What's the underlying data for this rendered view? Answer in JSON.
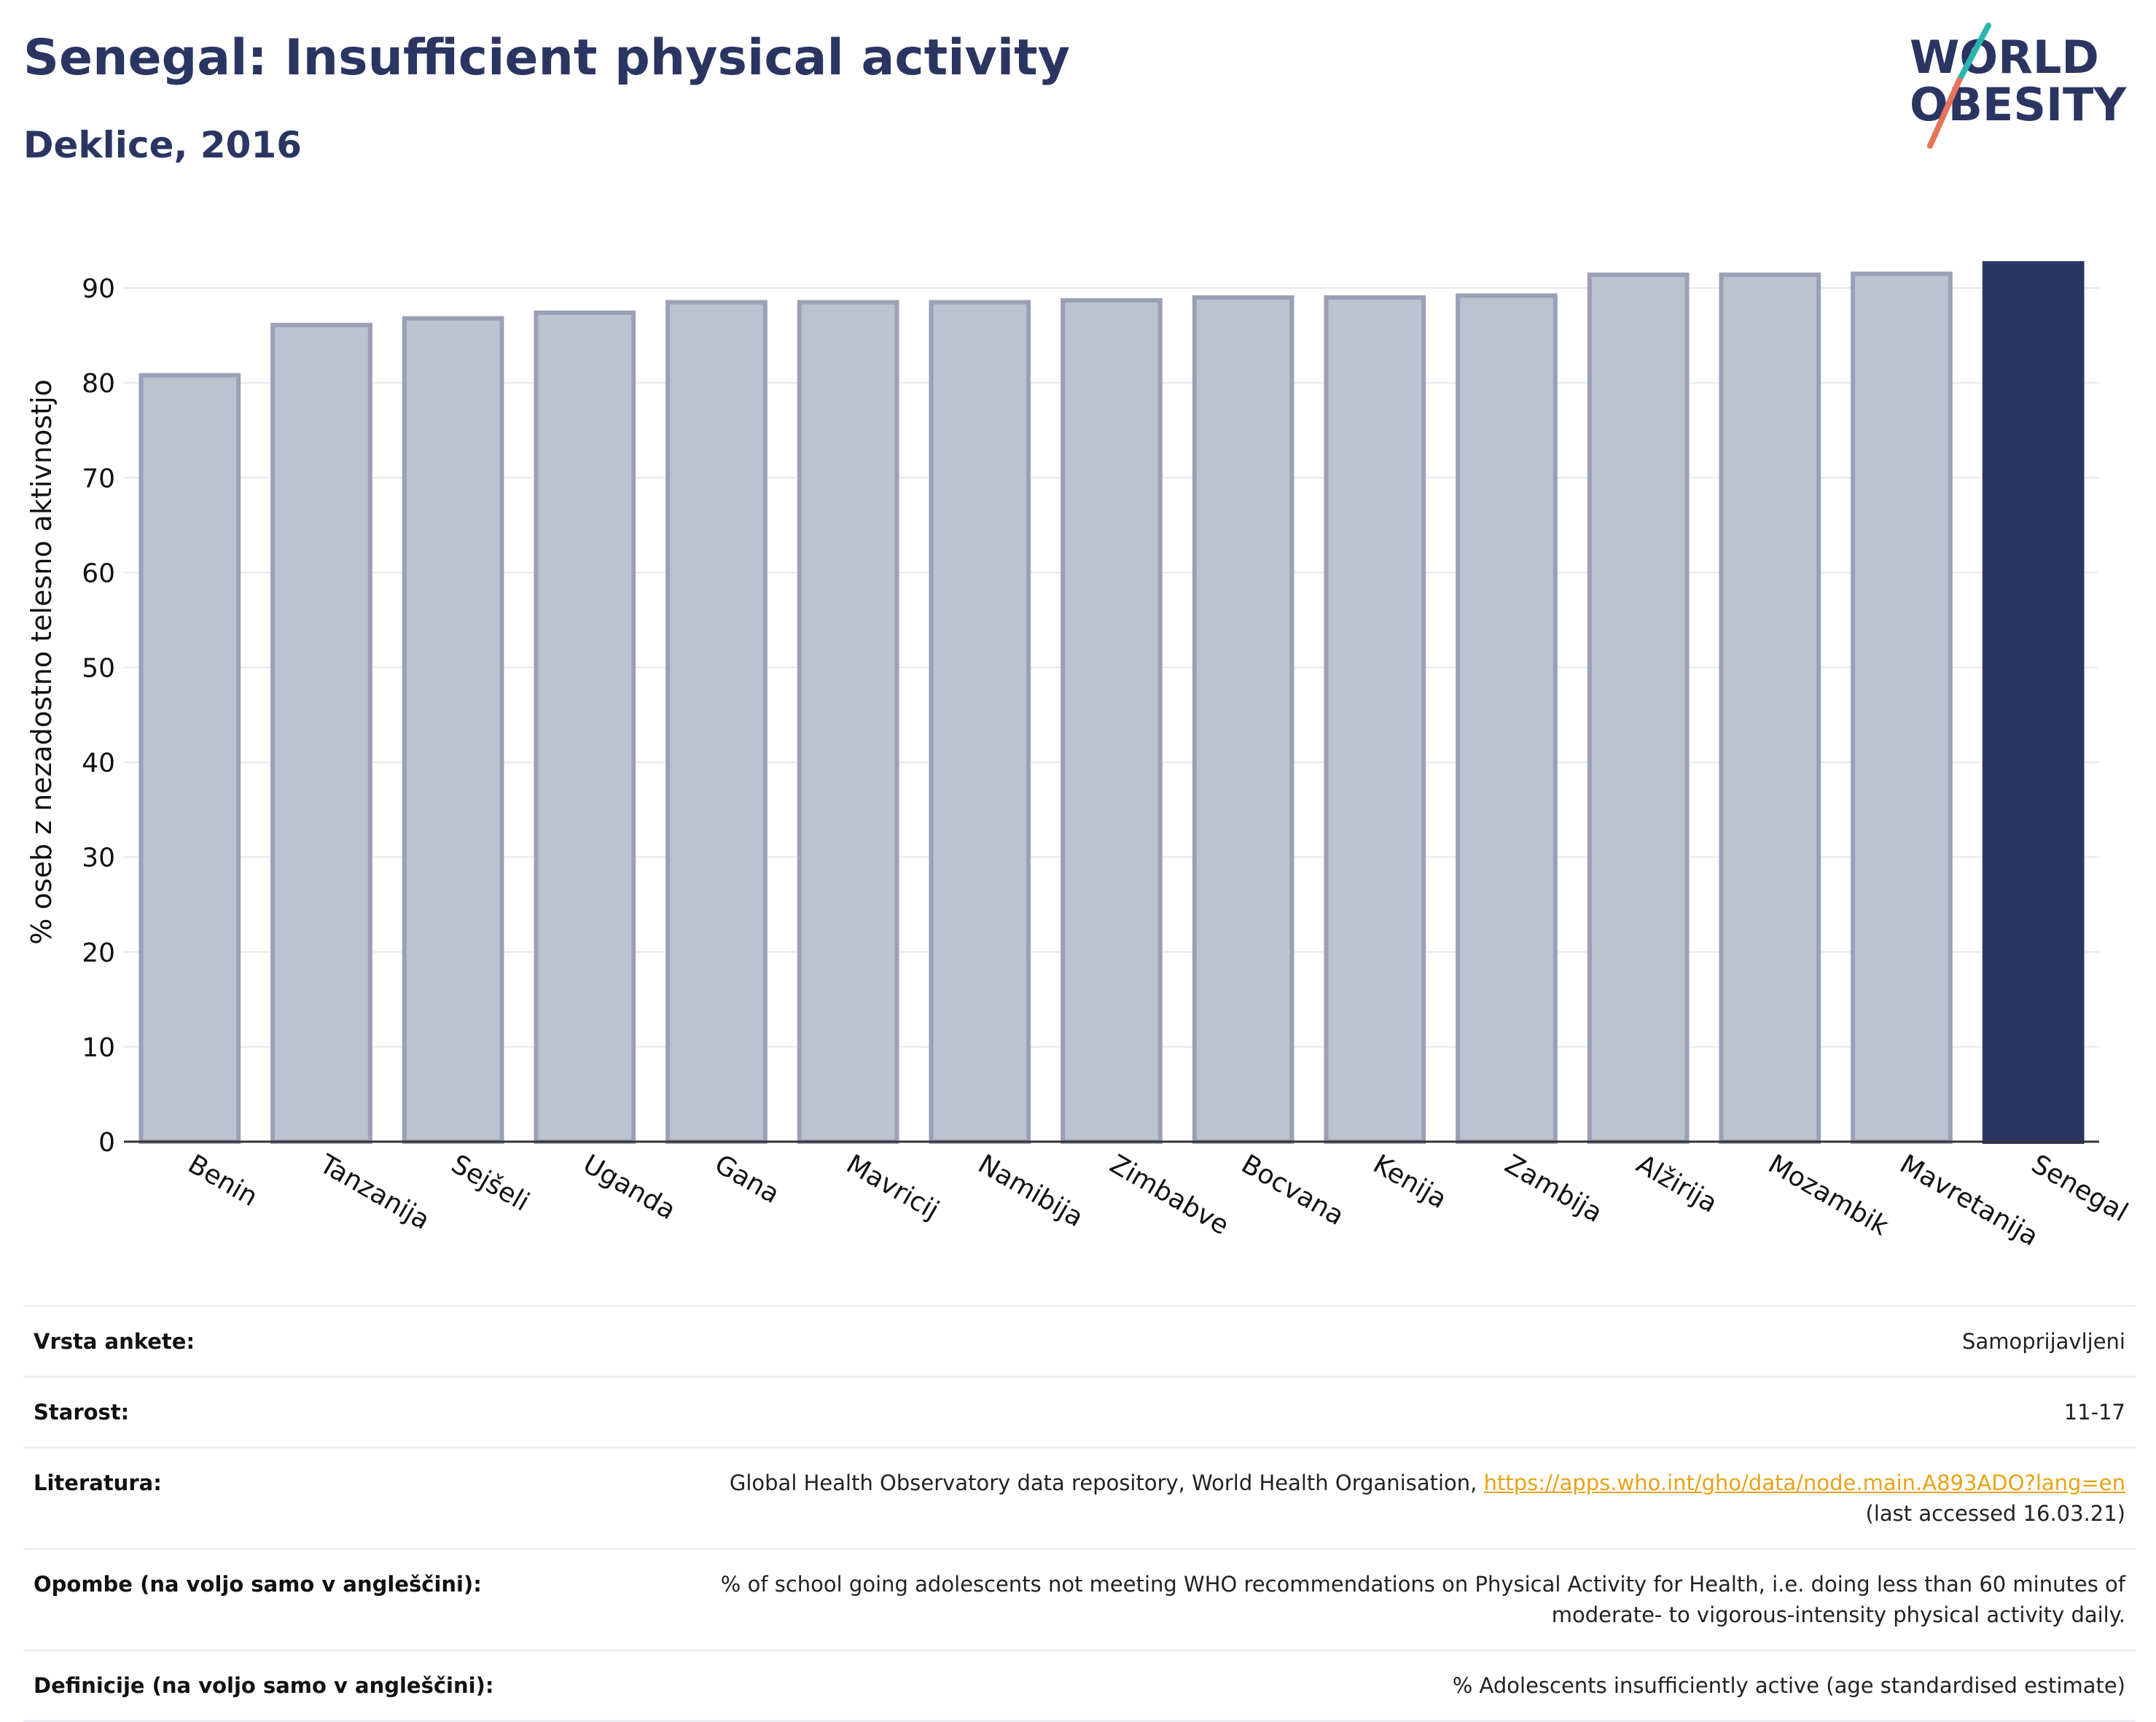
{
  "header": {
    "title": "Senegal: Insufficient physical activity",
    "subtitle": "Deklice, 2016"
  },
  "logo": {
    "line1": "WORLD",
    "line2": "OBESITY"
  },
  "colors": {
    "title": "#2b3562",
    "bar_default": "#bec2cf",
    "bar_default_border": "#9aa0b6",
    "bar_highlight": "#2b3562",
    "grid": "#e6e8ef",
    "logo_teal": "#2bb5b0",
    "logo_coral": "#e8735c",
    "link": "#e8a317"
  },
  "chart_data": {
    "type": "bar",
    "title": "Senegal: Insufficient physical activity",
    "subtitle": "Deklice, 2016",
    "xlabel": "",
    "ylabel": "% oseb z nezadostno telesno aktivnostjo",
    "ylim": [
      0,
      95
    ],
    "yticks": [
      0,
      10,
      20,
      30,
      40,
      50,
      60,
      70,
      80,
      90
    ],
    "grid": true,
    "categories": [
      "Benin",
      "Tanzanija",
      "Sejšeli",
      "Uganda",
      "Gana",
      "Mavricij",
      "Namibija",
      "Zimbabve",
      "Bocvana",
      "Kenija",
      "Zambija",
      "Alžirija",
      "Mozambik",
      "Mavretanija",
      "Senegal"
    ],
    "values": [
      80.8,
      86.1,
      86.8,
      87.4,
      88.5,
      88.5,
      88.5,
      88.7,
      89.0,
      89.0,
      89.2,
      91.4,
      91.4,
      91.5,
      92.6
    ],
    "highlight": "Senegal"
  },
  "info": [
    {
      "label": "Vrsta ankete:",
      "value": "Samoprijavljeni"
    },
    {
      "label": "Starost:",
      "value": "11-17"
    },
    {
      "label": "Literatura:",
      "value_prefix": "Global Health Observatory data repository, World Health Organisation, ",
      "link": "https://apps.who.int/gho/data/node.main.A893ADO?lang=en",
      "value_suffix": "(last accessed 16.03.21)"
    },
    {
      "label": "Opombe (na voljo samo v angleščini):",
      "value": "% of school going adolescents not meeting WHO recommendations on Physical Activity for Health, i.e. doing less than 60 minutes of moderate- to vigorous-intensity physical activity daily."
    },
    {
      "label": "Definicije (na voljo samo v angleščini):",
      "value": "% Adolescents insufficiently active (age standardised estimate)"
    }
  ]
}
